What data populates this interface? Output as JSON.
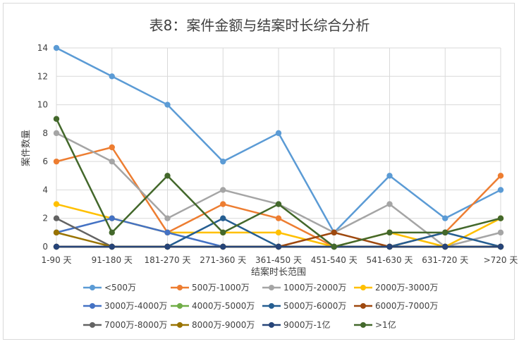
{
  "chart_data": {
    "type": "line",
    "title": "表8：案件金额与结案时长综合分析",
    "xlabel": "结案时长范围",
    "ylabel": "案件数量",
    "ylim": [
      0,
      14
    ],
    "yticks": [
      "0",
      "2",
      "4",
      "6",
      "8",
      "10",
      "12",
      "14"
    ],
    "grid": "both",
    "legend_position": "bottom",
    "categories": [
      "1-90 天",
      "91-180 天",
      "181-270 天",
      "271-360 天",
      "361-450 天",
      "451-540 天",
      "541-630 天",
      "631-720 天",
      ">720 天"
    ],
    "series": [
      {
        "name": "<500万",
        "color": "#5b9bd5",
        "values": [
          14,
          12,
          10,
          6,
          8,
          1,
          5,
          2,
          4
        ]
      },
      {
        "name": "500万-1000万",
        "color": "#ed7d31",
        "values": [
          6,
          7,
          1,
          3,
          2,
          0,
          0,
          1,
          5
        ]
      },
      {
        "name": "1000万-2000万",
        "color": "#a5a5a5",
        "values": [
          8,
          6,
          2,
          4,
          3,
          1,
          3,
          0,
          1
        ]
      },
      {
        "name": "2000万-3000万",
        "color": "#ffc000",
        "values": [
          3,
          2,
          1,
          1,
          1,
          0,
          1,
          0,
          2
        ]
      },
      {
        "name": "3000万-4000万",
        "color": "#4472c4",
        "values": [
          1,
          2,
          1,
          0,
          0,
          0,
          0,
          0,
          0
        ]
      },
      {
        "name": "4000万-5000万",
        "color": "#70ad47",
        "values": [
          0,
          0,
          0,
          0,
          0,
          0,
          0,
          0,
          0
        ]
      },
      {
        "name": "5000万-6000万",
        "color": "#255e91",
        "values": [
          0,
          0,
          0,
          2,
          0,
          0,
          0,
          1,
          0
        ]
      },
      {
        "name": "6000万-7000万",
        "color": "#9e480e",
        "values": [
          0,
          0,
          0,
          0,
          0,
          1,
          0,
          0,
          0
        ]
      },
      {
        "name": "7000万-8000万",
        "color": "#636363",
        "values": [
          2,
          0,
          0,
          0,
          0,
          0,
          0,
          0,
          0
        ]
      },
      {
        "name": "8000万-9000万",
        "color": "#997300",
        "values": [
          1,
          0,
          0,
          0,
          0,
          0,
          0,
          0,
          0
        ]
      },
      {
        "name": "9000万-1亿",
        "color": "#264478",
        "values": [
          0,
          0,
          0,
          0,
          0,
          0,
          0,
          0,
          0
        ]
      },
      {
        "name": ">1亿",
        "color": "#43682b",
        "values": [
          9,
          1,
          5,
          1,
          3,
          0,
          1,
          1,
          2
        ]
      }
    ]
  }
}
